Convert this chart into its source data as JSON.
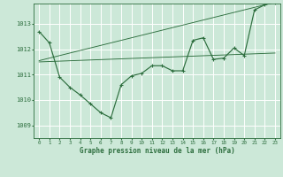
{
  "background_color": "#cce8d8",
  "grid_color": "#ffffff",
  "line_color": "#2d6e3e",
  "xlabel": "Graphe pression niveau de la mer (hPa)",
  "xlim": [
    -0.5,
    23.5
  ],
  "ylim": [
    1008.5,
    1013.8
  ],
  "yticks": [
    1009,
    1010,
    1011,
    1012,
    1013
  ],
  "xticks": [
    0,
    1,
    2,
    3,
    4,
    5,
    6,
    7,
    8,
    9,
    10,
    11,
    12,
    13,
    14,
    15,
    16,
    17,
    18,
    19,
    20,
    21,
    22,
    23
  ],
  "series_main": {
    "x": [
      0,
      1,
      2,
      3,
      4,
      5,
      6,
      7,
      8,
      9,
      10,
      11,
      12,
      13,
      14,
      15,
      16,
      17,
      18,
      19,
      20,
      21,
      22,
      23
    ],
    "y": [
      1012.7,
      1012.25,
      1010.9,
      1010.5,
      1010.2,
      1009.85,
      1009.5,
      1009.3,
      1010.6,
      1010.95,
      1011.05,
      1011.35,
      1011.35,
      1011.15,
      1011.15,
      1012.35,
      1012.45,
      1011.6,
      1011.65,
      1012.05,
      1011.75,
      1013.55,
      1013.75,
      1013.85
    ]
  },
  "series_flat": {
    "x": [
      0,
      23
    ],
    "y": [
      1011.5,
      1011.85
    ]
  },
  "series_rising": {
    "x": [
      0,
      23
    ],
    "y": [
      1011.55,
      1013.85
    ]
  }
}
